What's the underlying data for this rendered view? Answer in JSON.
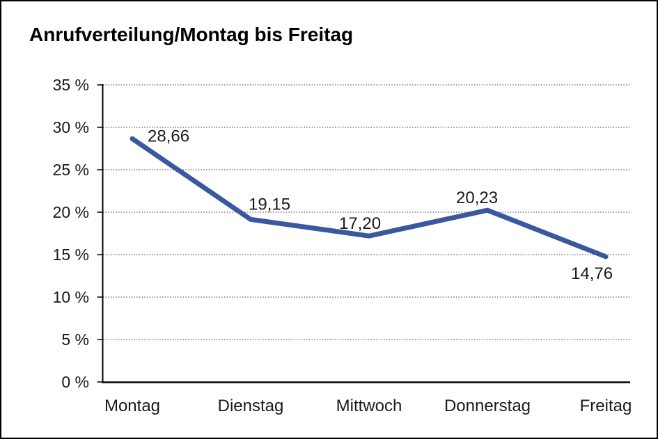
{
  "page": {
    "background": "#ffffff",
    "border_color": "#000000"
  },
  "chart_data": {
    "type": "line",
    "title": "Anrufverteilung/Montag bis Freitag",
    "categories": [
      "Montag",
      "Dienstag",
      "Mittwoch",
      "Donnerstag",
      "Freitag"
    ],
    "series": [
      {
        "name": "Anrufverteilung",
        "values": [
          28.66,
          19.15,
          17.2,
          20.23,
          14.76
        ],
        "point_labels": [
          "28,66",
          "19,15",
          "17,20",
          "20,23",
          "14,76"
        ],
        "color": "#3A57A0"
      }
    ],
    "xlabel": "",
    "ylabel": "",
    "ylim": [
      0,
      35
    ],
    "ytick_step": 5,
    "ytick_labels": [
      "0 %",
      "5 %",
      "10 %",
      "15 %",
      "20 %",
      "25 %",
      "30 %",
      "35 %"
    ],
    "grid": "horizontal-dotted",
    "grid_color": "#595959",
    "axis_color": "#000000",
    "legend": "none"
  }
}
